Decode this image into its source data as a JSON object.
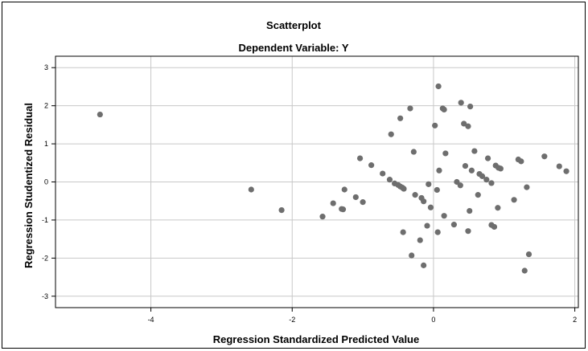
{
  "chart_data": {
    "type": "scatter",
    "title": "Scatterplot",
    "subtitle": "Dependent Variable: Y",
    "xlabel": "Regression Standardized Predicted Value",
    "ylabel": "Regression Studentized Residual",
    "xlim": [
      -5.35,
      2.05
    ],
    "ylim": [
      -3.3,
      3.3
    ],
    "xticks": [
      -4,
      -2,
      0,
      2
    ],
    "yticks": [
      -3,
      -2,
      -1,
      0,
      1,
      2,
      3
    ],
    "grid": true,
    "colors": {
      "point": "#6e6e6e",
      "grid": "#c8c8c8",
      "axis": "#000000",
      "background": "#ffffff"
    },
    "points": [
      [
        -4.72,
        1.77
      ],
      [
        -2.58,
        -0.2
      ],
      [
        -2.15,
        -0.74
      ],
      [
        -1.57,
        -0.91
      ],
      [
        -1.42,
        -0.56
      ],
      [
        -1.3,
        -0.71
      ],
      [
        -1.28,
        -0.72
      ],
      [
        -1.26,
        -0.2
      ],
      [
        -1.1,
        -0.4
      ],
      [
        -1.0,
        -0.53
      ],
      [
        -1.04,
        0.62
      ],
      [
        -0.88,
        0.44
      ],
      [
        -0.72,
        0.22
      ],
      [
        -0.62,
        0.06
      ],
      [
        -0.55,
        -0.04
      ],
      [
        -0.5,
        -0.08
      ],
      [
        -0.47,
        -0.12
      ],
      [
        -0.44,
        -0.15
      ],
      [
        -0.42,
        -0.18
      ],
      [
        -0.6,
        1.25
      ],
      [
        -0.47,
        1.67
      ],
      [
        -0.33,
        1.93
      ],
      [
        -0.28,
        0.79
      ],
      [
        -0.26,
        -0.34
      ],
      [
        -0.17,
        -0.42
      ],
      [
        -0.14,
        -0.51
      ],
      [
        -0.43,
        -1.32
      ],
      [
        -0.31,
        -1.93
      ],
      [
        -0.19,
        -1.53
      ],
      [
        -0.14,
        -2.19
      ],
      [
        -0.09,
        -1.15
      ],
      [
        -0.07,
        -0.06
      ],
      [
        -0.04,
        -0.67
      ],
      [
        0.02,
        1.48
      ],
      [
        0.07,
        2.51
      ],
      [
        0.13,
        1.93
      ],
      [
        0.15,
        1.9
      ],
      [
        0.05,
        -0.21
      ],
      [
        0.08,
        0.3
      ],
      [
        0.17,
        0.75
      ],
      [
        0.15,
        -0.89
      ],
      [
        0.06,
        -1.32
      ],
      [
        0.29,
        -1.12
      ],
      [
        0.33,
        0.0
      ],
      [
        0.39,
        2.08
      ],
      [
        0.43,
        1.53
      ],
      [
        0.49,
        1.46
      ],
      [
        0.52,
        1.98
      ],
      [
        0.38,
        -0.09
      ],
      [
        0.45,
        0.42
      ],
      [
        0.54,
        0.3
      ],
      [
        0.58,
        0.81
      ],
      [
        0.65,
        0.21
      ],
      [
        0.69,
        0.15
      ],
      [
        0.75,
        0.06
      ],
      [
        0.77,
        0.62
      ],
      [
        0.82,
        -0.03
      ],
      [
        0.88,
        0.43
      ],
      [
        0.92,
        0.37
      ],
      [
        0.95,
        0.35
      ],
      [
        0.51,
        -0.76
      ],
      [
        0.63,
        -0.34
      ],
      [
        0.91,
        -0.68
      ],
      [
        0.82,
        -1.13
      ],
      [
        0.86,
        -1.18
      ],
      [
        0.49,
        -1.29
      ],
      [
        1.14,
        -0.47
      ],
      [
        1.2,
        0.59
      ],
      [
        1.24,
        0.54
      ],
      [
        1.32,
        -0.14
      ],
      [
        1.35,
        -1.9
      ],
      [
        1.29,
        -2.33
      ],
      [
        1.57,
        0.67
      ],
      [
        1.78,
        0.41
      ],
      [
        1.88,
        0.28
      ]
    ]
  }
}
